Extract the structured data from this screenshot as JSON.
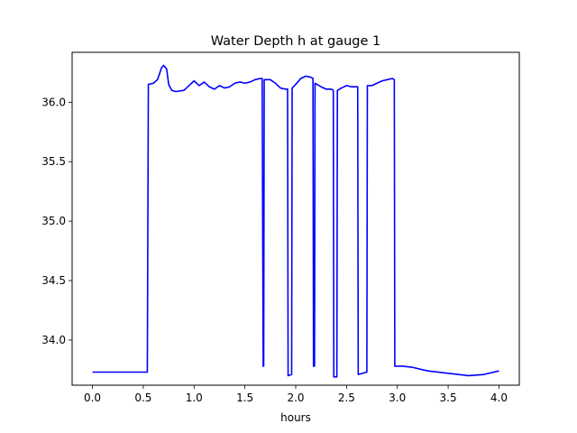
{
  "chart_data": {
    "type": "line",
    "title": "Water Depth h at gauge 1",
    "xlabel": "hours",
    "ylabel": "",
    "xlim": [
      -0.2,
      4.2
    ],
    "ylim": [
      33.62,
      36.42
    ],
    "xticks": [
      0.0,
      0.5,
      1.0,
      1.5,
      2.0,
      2.5,
      3.0,
      3.5,
      4.0
    ],
    "xtick_labels": [
      "0.0",
      "0.5",
      "1.0",
      "1.5",
      "2.0",
      "2.5",
      "3.0",
      "3.5",
      "4.0"
    ],
    "yticks": [
      34.0,
      34.5,
      35.0,
      35.5,
      36.0
    ],
    "ytick_labels": [
      "34.0",
      "34.5",
      "35.0",
      "35.5",
      "36.0"
    ],
    "grid": false,
    "legend": "none",
    "series": [
      {
        "color": "#0000ff",
        "x": [
          0.0,
          0.54,
          0.55,
          0.6,
          0.64,
          0.68,
          0.7,
          0.73,
          0.75,
          0.78,
          0.82,
          0.9,
          0.95,
          1.0,
          1.05,
          1.1,
          1.15,
          1.2,
          1.25,
          1.3,
          1.35,
          1.4,
          1.45,
          1.5,
          1.55,
          1.6,
          1.65,
          1.67,
          1.68,
          1.685,
          1.69,
          1.75,
          1.8,
          1.85,
          1.9,
          1.92,
          1.925,
          1.96,
          1.965,
          2.0,
          2.05,
          2.1,
          2.15,
          2.17,
          2.175,
          2.185,
          2.19,
          2.25,
          2.3,
          2.35,
          2.37,
          2.375,
          2.405,
          2.41,
          2.45,
          2.5,
          2.55,
          2.6,
          2.61,
          2.615,
          2.7,
          2.705,
          2.75,
          2.8,
          2.85,
          2.9,
          2.95,
          2.97,
          2.975,
          3.05,
          3.15,
          3.3,
          3.5,
          3.7,
          3.85,
          4.0
        ],
        "y": [
          33.73,
          33.73,
          36.15,
          36.16,
          36.19,
          36.29,
          36.31,
          36.28,
          36.15,
          36.1,
          36.09,
          36.1,
          36.14,
          36.18,
          36.14,
          36.17,
          36.13,
          36.11,
          36.14,
          36.12,
          36.13,
          36.16,
          36.17,
          36.16,
          36.17,
          36.19,
          36.2,
          36.2,
          33.78,
          33.78,
          36.19,
          36.19,
          36.16,
          36.12,
          36.11,
          36.11,
          33.7,
          33.71,
          36.12,
          36.15,
          36.2,
          36.22,
          36.21,
          36.2,
          33.78,
          33.78,
          36.16,
          36.13,
          36.11,
          36.11,
          36.1,
          33.69,
          33.69,
          36.1,
          36.12,
          36.14,
          36.13,
          36.13,
          36.13,
          33.71,
          33.73,
          36.14,
          36.14,
          36.16,
          36.18,
          36.19,
          36.2,
          36.19,
          33.78,
          33.78,
          33.77,
          33.74,
          33.72,
          33.7,
          33.71,
          33.74
        ]
      }
    ]
  }
}
